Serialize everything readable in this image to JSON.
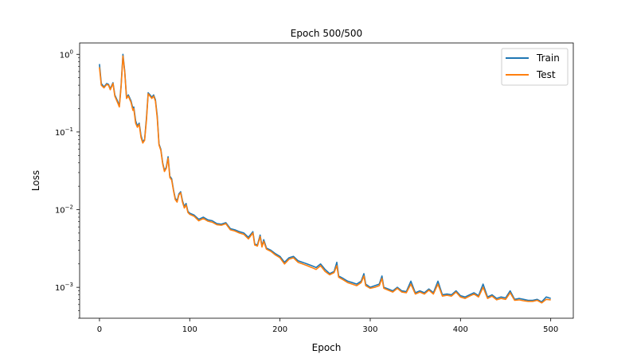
{
  "chart_data": {
    "type": "line",
    "title": "Epoch 500/500",
    "xlabel": "Epoch",
    "ylabel": "Loss",
    "xlim": [
      -22,
      525
    ],
    "ylim": [
      0.0004,
      1.4
    ],
    "yscale": "log",
    "grid": false,
    "legend_position": "top-right",
    "x_ticks": [
      0,
      100,
      200,
      300,
      400,
      500
    ],
    "y_ticks": [
      {
        "value": 1,
        "base": "10",
        "exp": "0"
      },
      {
        "value": 0.1,
        "base": "10",
        "exp": "−1"
      },
      {
        "value": 0.01,
        "base": "10",
        "exp": "−2"
      },
      {
        "value": 0.001,
        "base": "10",
        "exp": "−3"
      }
    ],
    "series": [
      {
        "name": "Train",
        "color": "#1f77b4",
        "points": [
          [
            0,
            0.75
          ],
          [
            2,
            0.42
          ],
          [
            5,
            0.38
          ],
          [
            8,
            0.42
          ],
          [
            10,
            0.41
          ],
          [
            12,
            0.36
          ],
          [
            15,
            0.43
          ],
          [
            17,
            0.3
          ],
          [
            20,
            0.25
          ],
          [
            22,
            0.22
          ],
          [
            24,
            0.4
          ],
          [
            26,
            1.0
          ],
          [
            28,
            0.6
          ],
          [
            30,
            0.28
          ],
          [
            32,
            0.3
          ],
          [
            35,
            0.25
          ],
          [
            37,
            0.2
          ],
          [
            38,
            0.21
          ],
          [
            40,
            0.14
          ],
          [
            42,
            0.12
          ],
          [
            44,
            0.13
          ],
          [
            46,
            0.09
          ],
          [
            48,
            0.075
          ],
          [
            50,
            0.08
          ],
          [
            52,
            0.15
          ],
          [
            54,
            0.32
          ],
          [
            56,
            0.3
          ],
          [
            58,
            0.28
          ],
          [
            60,
            0.3
          ],
          [
            62,
            0.26
          ],
          [
            64,
            0.16
          ],
          [
            66,
            0.07
          ],
          [
            68,
            0.06
          ],
          [
            70,
            0.04
          ],
          [
            72,
            0.032
          ],
          [
            74,
            0.035
          ],
          [
            76,
            0.048
          ],
          [
            78,
            0.027
          ],
          [
            80,
            0.025
          ],
          [
            82,
            0.018
          ],
          [
            84,
            0.014
          ],
          [
            86,
            0.013
          ],
          [
            88,
            0.016
          ],
          [
            90,
            0.017
          ],
          [
            92,
            0.013
          ],
          [
            94,
            0.011
          ],
          [
            96,
            0.012
          ],
          [
            98,
            0.0095
          ],
          [
            100,
            0.009
          ],
          [
            105,
            0.0085
          ],
          [
            110,
            0.0075
          ],
          [
            115,
            0.008
          ],
          [
            120,
            0.0074
          ],
          [
            125,
            0.0072
          ],
          [
            130,
            0.0066
          ],
          [
            135,
            0.0065
          ],
          [
            140,
            0.0068
          ],
          [
            145,
            0.0057
          ],
          [
            150,
            0.0055
          ],
          [
            155,
            0.0052
          ],
          [
            160,
            0.005
          ],
          [
            165,
            0.0044
          ],
          [
            170,
            0.0052
          ],
          [
            172,
            0.0036
          ],
          [
            175,
            0.0035
          ],
          [
            178,
            0.0047
          ],
          [
            180,
            0.0034
          ],
          [
            182,
            0.0041
          ],
          [
            185,
            0.0032
          ],
          [
            190,
            0.003
          ],
          [
            195,
            0.0027
          ],
          [
            200,
            0.0025
          ],
          [
            205,
            0.0021
          ],
          [
            210,
            0.0024
          ],
          [
            215,
            0.0025
          ],
          [
            220,
            0.0022
          ],
          [
            225,
            0.0021
          ],
          [
            230,
            0.002
          ],
          [
            235,
            0.0019
          ],
          [
            240,
            0.0018
          ],
          [
            245,
            0.002
          ],
          [
            250,
            0.0017
          ],
          [
            255,
            0.0015
          ],
          [
            260,
            0.0016
          ],
          [
            263,
            0.0021
          ],
          [
            265,
            0.0014
          ],
          [
            270,
            0.0013
          ],
          [
            275,
            0.0012
          ],
          [
            280,
            0.00115
          ],
          [
            285,
            0.0011
          ],
          [
            290,
            0.0012
          ],
          [
            293,
            0.0015
          ],
          [
            295,
            0.0011
          ],
          [
            300,
            0.001
          ],
          [
            305,
            0.00105
          ],
          [
            310,
            0.0011
          ],
          [
            313,
            0.0014
          ],
          [
            315,
            0.001
          ],
          [
            320,
            0.00095
          ],
          [
            325,
            0.0009
          ],
          [
            330,
            0.001
          ],
          [
            335,
            0.0009
          ],
          [
            340,
            0.00088
          ],
          [
            345,
            0.0012
          ],
          [
            350,
            0.00085
          ],
          [
            355,
            0.0009
          ],
          [
            360,
            0.00085
          ],
          [
            365,
            0.00095
          ],
          [
            370,
            0.00085
          ],
          [
            375,
            0.0012
          ],
          [
            380,
            0.0008
          ],
          [
            385,
            0.00082
          ],
          [
            390,
            0.0008
          ],
          [
            395,
            0.0009
          ],
          [
            400,
            0.00078
          ],
          [
            405,
            0.00075
          ],
          [
            410,
            0.0008
          ],
          [
            415,
            0.00085
          ],
          [
            420,
            0.00078
          ],
          [
            425,
            0.0011
          ],
          [
            430,
            0.00075
          ],
          [
            435,
            0.0008
          ],
          [
            440,
            0.00072
          ],
          [
            445,
            0.00075
          ],
          [
            450,
            0.00073
          ],
          [
            455,
            0.0009
          ],
          [
            460,
            0.0007
          ],
          [
            465,
            0.00072
          ],
          [
            470,
            0.0007
          ],
          [
            475,
            0.00068
          ],
          [
            480,
            0.00068
          ],
          [
            485,
            0.0007
          ],
          [
            490,
            0.00065
          ],
          [
            495,
            0.00075
          ],
          [
            500,
            0.00072
          ]
        ]
      },
      {
        "name": "Test",
        "color": "#ff7f0e",
        "points": [
          [
            0,
            0.68
          ],
          [
            2,
            0.4
          ],
          [
            5,
            0.37
          ],
          [
            8,
            0.41
          ],
          [
            10,
            0.4
          ],
          [
            12,
            0.35
          ],
          [
            15,
            0.42
          ],
          [
            17,
            0.29
          ],
          [
            20,
            0.24
          ],
          [
            22,
            0.21
          ],
          [
            24,
            0.38
          ],
          [
            26,
            0.95
          ],
          [
            28,
            0.58
          ],
          [
            30,
            0.27
          ],
          [
            32,
            0.29
          ],
          [
            35,
            0.24
          ],
          [
            37,
            0.19
          ],
          [
            38,
            0.2
          ],
          [
            40,
            0.13
          ],
          [
            42,
            0.115
          ],
          [
            44,
            0.125
          ],
          [
            46,
            0.085
          ],
          [
            48,
            0.072
          ],
          [
            50,
            0.078
          ],
          [
            52,
            0.14
          ],
          [
            54,
            0.31
          ],
          [
            56,
            0.29
          ],
          [
            58,
            0.27
          ],
          [
            60,
            0.29
          ],
          [
            62,
            0.25
          ],
          [
            64,
            0.15
          ],
          [
            66,
            0.068
          ],
          [
            68,
            0.058
          ],
          [
            70,
            0.039
          ],
          [
            72,
            0.031
          ],
          [
            74,
            0.034
          ],
          [
            76,
            0.046
          ],
          [
            78,
            0.026
          ],
          [
            80,
            0.024
          ],
          [
            82,
            0.0175
          ],
          [
            84,
            0.0135
          ],
          [
            86,
            0.0125
          ],
          [
            88,
            0.0155
          ],
          [
            90,
            0.0165
          ],
          [
            92,
            0.0125
          ],
          [
            94,
            0.0105
          ],
          [
            96,
            0.0115
          ],
          [
            98,
            0.0092
          ],
          [
            100,
            0.0087
          ],
          [
            105,
            0.0082
          ],
          [
            110,
            0.0072
          ],
          [
            115,
            0.0077
          ],
          [
            120,
            0.0071
          ],
          [
            125,
            0.0069
          ],
          [
            130,
            0.0064
          ],
          [
            135,
            0.0063
          ],
          [
            140,
            0.0066
          ],
          [
            145,
            0.0055
          ],
          [
            150,
            0.0053
          ],
          [
            155,
            0.005
          ],
          [
            160,
            0.0048
          ],
          [
            165,
            0.0042
          ],
          [
            170,
            0.005
          ],
          [
            172,
            0.0035
          ],
          [
            175,
            0.0034
          ],
          [
            178,
            0.0045
          ],
          [
            180,
            0.0033
          ],
          [
            182,
            0.0039
          ],
          [
            185,
            0.0031
          ],
          [
            190,
            0.0029
          ],
          [
            195,
            0.0026
          ],
          [
            200,
            0.0024
          ],
          [
            205,
            0.002
          ],
          [
            210,
            0.0023
          ],
          [
            215,
            0.0024
          ],
          [
            220,
            0.0021
          ],
          [
            225,
            0.002
          ],
          [
            230,
            0.0019
          ],
          [
            235,
            0.0018
          ],
          [
            240,
            0.0017
          ],
          [
            245,
            0.0019
          ],
          [
            250,
            0.0016
          ],
          [
            255,
            0.00145
          ],
          [
            260,
            0.00155
          ],
          [
            263,
            0.0019
          ],
          [
            265,
            0.00135
          ],
          [
            270,
            0.00125
          ],
          [
            275,
            0.00115
          ],
          [
            280,
            0.0011
          ],
          [
            285,
            0.00105
          ],
          [
            290,
            0.00115
          ],
          [
            293,
            0.0014
          ],
          [
            295,
            0.00105
          ],
          [
            300,
            0.00097
          ],
          [
            305,
            0.001
          ],
          [
            310,
            0.00105
          ],
          [
            313,
            0.0013
          ],
          [
            315,
            0.00097
          ],
          [
            320,
            0.00092
          ],
          [
            325,
            0.00087
          ],
          [
            330,
            0.00097
          ],
          [
            335,
            0.00087
          ],
          [
            340,
            0.00085
          ],
          [
            345,
            0.0011
          ],
          [
            350,
            0.00082
          ],
          [
            355,
            0.00087
          ],
          [
            360,
            0.00082
          ],
          [
            365,
            0.00092
          ],
          [
            370,
            0.00082
          ],
          [
            375,
            0.0011
          ],
          [
            380,
            0.00077
          ],
          [
            385,
            0.00079
          ],
          [
            390,
            0.00077
          ],
          [
            395,
            0.00087
          ],
          [
            400,
            0.00075
          ],
          [
            405,
            0.00072
          ],
          [
            410,
            0.00077
          ],
          [
            415,
            0.00082
          ],
          [
            420,
            0.00075
          ],
          [
            425,
            0.001
          ],
          [
            430,
            0.00072
          ],
          [
            435,
            0.00077
          ],
          [
            440,
            0.00069
          ],
          [
            445,
            0.00072
          ],
          [
            450,
            0.0007
          ],
          [
            455,
            0.00085
          ],
          [
            460,
            0.00068
          ],
          [
            465,
            0.00069
          ],
          [
            470,
            0.00067
          ],
          [
            475,
            0.00066
          ],
          [
            480,
            0.00066
          ],
          [
            485,
            0.00068
          ],
          [
            490,
            0.00063
          ],
          [
            495,
            0.0007
          ],
          [
            500,
            0.00069
          ]
        ]
      }
    ]
  }
}
